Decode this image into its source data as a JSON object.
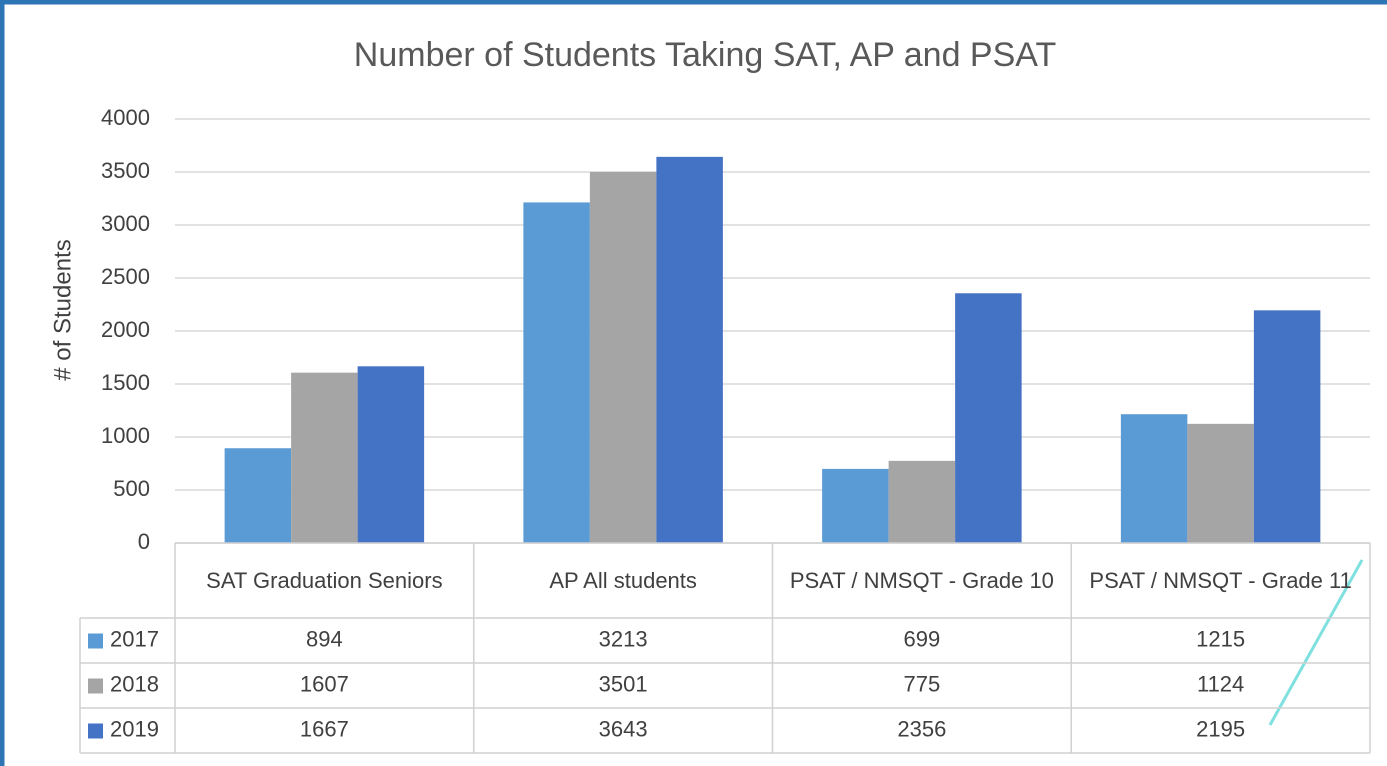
{
  "chart_data": {
    "type": "bar",
    "title": "Number of Students Taking SAT, AP and PSAT",
    "y_label": "# of Students",
    "categories": [
      "SAT Graduation Seniors",
      "AP All students",
      "PSAT / NMSQT - Grade 10",
      "PSAT / NMSQT - Grade 11"
    ],
    "series": [
      {
        "name": "2017",
        "color": "#5b9bd5",
        "values": [
          894,
          3213,
          699,
          1215
        ]
      },
      {
        "name": "2018",
        "color": "#a5a5a5",
        "values": [
          1607,
          3501,
          775,
          1124
        ]
      },
      {
        "name": "2019",
        "color": "#4472c4",
        "values": [
          1667,
          3643,
          2356,
          2195
        ]
      }
    ],
    "ylim": [
      0,
      4000
    ],
    "yticks": [
      0,
      500,
      1000,
      1500,
      2000,
      2500,
      3000,
      3500,
      4000
    ],
    "grid": true,
    "data_table": true
  }
}
